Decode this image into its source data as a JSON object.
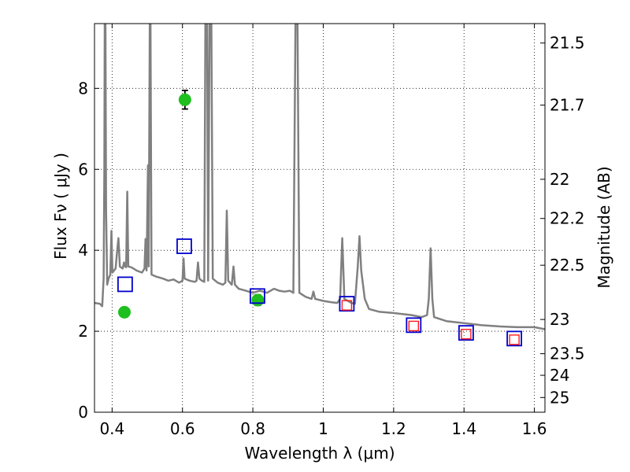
{
  "chart_data": {
    "type": "scatter",
    "xlabel": "Wavelength  λ (μm)",
    "ylabel": "Flux  Fν  ( μJy )",
    "y2label": "Magnitude (AB)",
    "xlim": [
      0.35,
      1.63
    ],
    "ylim": [
      0,
      9.6
    ],
    "grid": true,
    "x_ticks": [
      {
        "value": 0.4,
        "label": "0.4"
      },
      {
        "value": 0.6,
        "label": "0.6"
      },
      {
        "value": 0.8,
        "label": "0.8"
      },
      {
        "value": 1.0,
        "label": "1"
      },
      {
        "value": 1.2,
        "label": "1.2"
      },
      {
        "value": 1.4,
        "label": "1.4"
      },
      {
        "value": 1.6,
        "label": "1.6"
      }
    ],
    "y_ticks": [
      {
        "value": 0,
        "label": "0"
      },
      {
        "value": 2,
        "label": "2"
      },
      {
        "value": 4,
        "label": "4"
      },
      {
        "value": 6,
        "label": "6"
      },
      {
        "value": 8,
        "label": "8"
      }
    ],
    "y2_ticks": [
      {
        "value": 21.5,
        "label": "21.5"
      },
      {
        "value": 21.7,
        "label": "21.7"
      },
      {
        "value": 22,
        "label": "22"
      },
      {
        "value": 22.2,
        "label": "22.2"
      },
      {
        "value": 22.5,
        "label": "22.5"
      },
      {
        "value": 23,
        "label": "23"
      },
      {
        "value": 23.5,
        "label": "23.5"
      },
      {
        "value": 24,
        "label": "24"
      },
      {
        "value": 25,
        "label": "25"
      }
    ],
    "series": [
      {
        "kind": "line",
        "color": "#808080",
        "points": [
          [
            0.35,
            2.7
          ],
          [
            0.365,
            2.68
          ],
          [
            0.372,
            2.62
          ],
          [
            0.376,
            3.3
          ],
          [
            0.378,
            6.0
          ],
          [
            0.379,
            9.6
          ],
          [
            0.381,
            9.6
          ],
          [
            0.383,
            5.0
          ],
          [
            0.386,
            3.15
          ],
          [
            0.39,
            3.3
          ],
          [
            0.395,
            3.4
          ],
          [
            0.398,
            4.48
          ],
          [
            0.401,
            3.45
          ],
          [
            0.41,
            3.55
          ],
          [
            0.414,
            3.95
          ],
          [
            0.418,
            4.3
          ],
          [
            0.422,
            3.6
          ],
          [
            0.43,
            3.55
          ],
          [
            0.434,
            3.7
          ],
          [
            0.437,
            3.6
          ],
          [
            0.44,
            3.58
          ],
          [
            0.443,
            5.45
          ],
          [
            0.446,
            3.6
          ],
          [
            0.455,
            3.58
          ],
          [
            0.47,
            3.5
          ],
          [
            0.485,
            3.45
          ],
          [
            0.492,
            3.55
          ],
          [
            0.495,
            4.28
          ],
          [
            0.498,
            3.5
          ],
          [
            0.502,
            6.1
          ],
          [
            0.504,
            3.6
          ],
          [
            0.507,
            9.6
          ],
          [
            0.509,
            9.6
          ],
          [
            0.512,
            3.4
          ],
          [
            0.525,
            3.35
          ],
          [
            0.545,
            3.3
          ],
          [
            0.56,
            3.25
          ],
          [
            0.575,
            3.28
          ],
          [
            0.59,
            3.2
          ],
          [
            0.6,
            3.25
          ],
          [
            0.603,
            3.8
          ],
          [
            0.606,
            3.3
          ],
          [
            0.62,
            3.25
          ],
          [
            0.635,
            3.22
          ],
          [
            0.64,
            3.25
          ],
          [
            0.644,
            3.7
          ],
          [
            0.648,
            3.3
          ],
          [
            0.655,
            3.25
          ],
          [
            0.662,
            3.22
          ],
          [
            0.665,
            9.6
          ],
          [
            0.67,
            9.6
          ],
          [
            0.673,
            3.25
          ],
          [
            0.677,
            9.6
          ],
          [
            0.682,
            9.6
          ],
          [
            0.686,
            3.3
          ],
          [
            0.7,
            3.2
          ],
          [
            0.715,
            3.15
          ],
          [
            0.722,
            3.2
          ],
          [
            0.726,
            4.98
          ],
          [
            0.73,
            3.25
          ],
          [
            0.74,
            3.15
          ],
          [
            0.745,
            3.6
          ],
          [
            0.749,
            3.15
          ],
          [
            0.76,
            3.05
          ],
          [
            0.78,
            3.0
          ],
          [
            0.8,
            2.95
          ],
          [
            0.82,
            3.0
          ],
          [
            0.84,
            2.95
          ],
          [
            0.86,
            3.05
          ],
          [
            0.875,
            3.0
          ],
          [
            0.89,
            2.98
          ],
          [
            0.905,
            3.0
          ],
          [
            0.915,
            2.95
          ],
          [
            0.921,
            9.6
          ],
          [
            0.927,
            9.6
          ],
          [
            0.932,
            2.95
          ],
          [
            0.95,
            2.85
          ],
          [
            0.967,
            2.8
          ],
          [
            0.972,
            2.98
          ],
          [
            0.977,
            2.8
          ],
          [
            1.0,
            2.75
          ],
          [
            1.02,
            2.72
          ],
          [
            1.04,
            2.7
          ],
          [
            1.048,
            2.8
          ],
          [
            1.054,
            4.3
          ],
          [
            1.06,
            2.8
          ],
          [
            1.08,
            2.7
          ],
          [
            1.09,
            2.68
          ],
          [
            1.098,
            3.6
          ],
          [
            1.103,
            4.35
          ],
          [
            1.108,
            3.5
          ],
          [
            1.118,
            2.8
          ],
          [
            1.13,
            2.55
          ],
          [
            1.16,
            2.48
          ],
          [
            1.2,
            2.45
          ],
          [
            1.25,
            2.4
          ],
          [
            1.28,
            2.35
          ],
          [
            1.295,
            2.4
          ],
          [
            1.3,
            2.8
          ],
          [
            1.305,
            4.05
          ],
          [
            1.31,
            2.8
          ],
          [
            1.315,
            2.35
          ],
          [
            1.35,
            2.25
          ],
          [
            1.4,
            2.2
          ],
          [
            1.45,
            2.15
          ],
          [
            1.5,
            2.12
          ],
          [
            1.55,
            2.1
          ],
          [
            1.6,
            2.1
          ],
          [
            1.63,
            2.05
          ]
        ]
      },
      {
        "kind": "points",
        "marker": "circle",
        "color": "#1fbf1f",
        "points": [
          {
            "x": 0.435,
            "y": 2.47,
            "err": 0.12
          },
          {
            "x": 0.607,
            "y": 7.72,
            "err": 0.23
          },
          {
            "x": 0.814,
            "y": 2.77,
            "err": 0.13
          }
        ]
      },
      {
        "kind": "points",
        "marker": "square-open",
        "color": "#0000cc",
        "points": [
          {
            "x": 0.437,
            "y": 3.16
          },
          {
            "x": 0.605,
            "y": 4.1
          },
          {
            "x": 0.813,
            "y": 2.87
          },
          {
            "x": 1.067,
            "y": 2.68
          },
          {
            "x": 1.257,
            "y": 2.15
          },
          {
            "x": 1.406,
            "y": 1.96
          },
          {
            "x": 1.543,
            "y": 1.82
          }
        ]
      },
      {
        "kind": "points",
        "marker": "square-open",
        "color": "#ff1a1a",
        "points": [
          {
            "x": 1.067,
            "y": 2.64
          },
          {
            "x": 1.257,
            "y": 2.13
          },
          {
            "x": 1.406,
            "y": 1.93
          },
          {
            "x": 1.543,
            "y": 1.79
          }
        ]
      }
    ]
  }
}
